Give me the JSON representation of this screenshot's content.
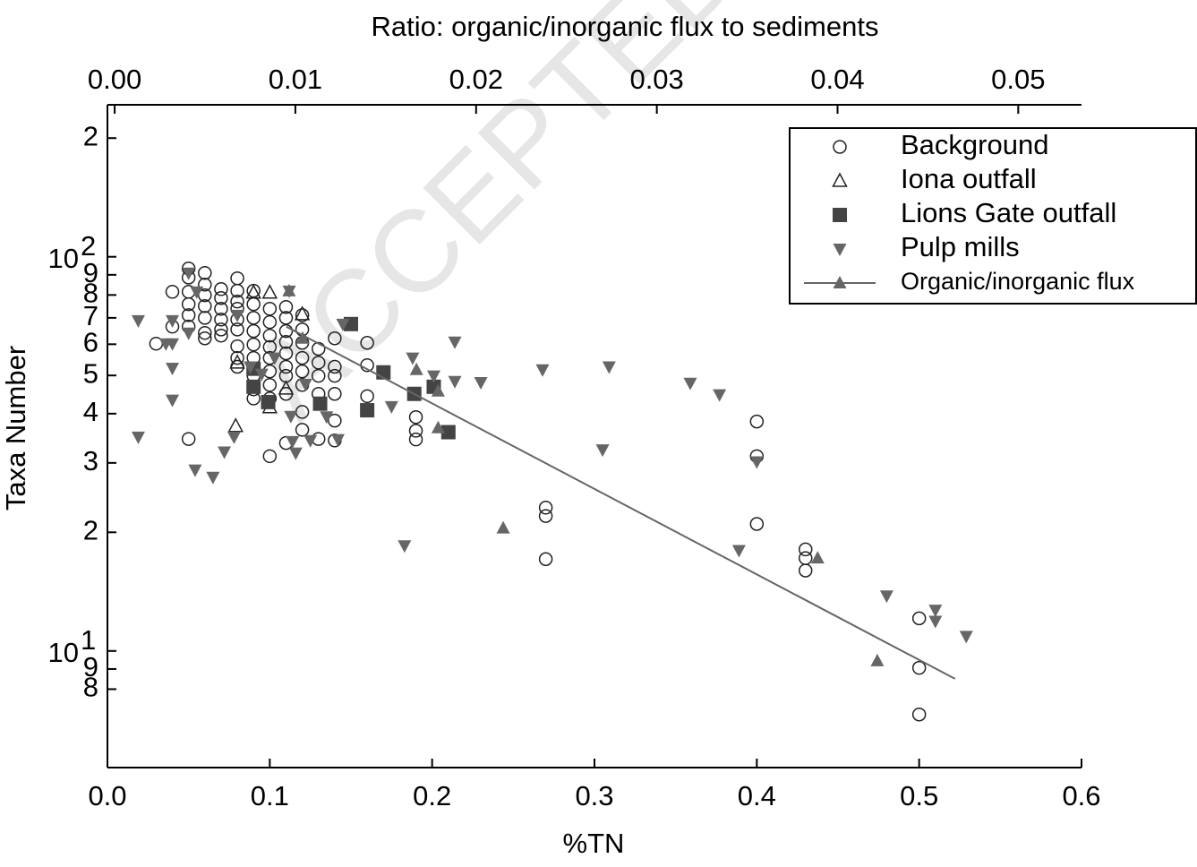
{
  "chart_data": {
    "type": "scatter",
    "watermark": "ACCEPTED",
    "x2label": "Ratio: organic/inorganic flux to sediments",
    "xlabel": "%TN",
    "ylabel": "Taxa Number",
    "xlim": [
      0,
      0.6
    ],
    "xticks": [
      {
        "value": 0,
        "label": "0.0"
      },
      0.1,
      0.2,
      0.3,
      0.4,
      0.5,
      0.6
    ],
    "x2lim": [
      -0.0004,
      0.0535
    ],
    "x2ticks": [
      {
        "value": 0,
        "label": "0.00"
      },
      0.01,
      0.02,
      0.03,
      0.04,
      0.05
    ],
    "ylim": [
      5.06,
      243
    ],
    "log_y": true,
    "yticks": [
      {
        "value": 200,
        "label": "2"
      },
      {
        "value": 100,
        "label": "10",
        "exponent": "2"
      },
      {
        "value": 90,
        "label": "9"
      },
      {
        "value": 80,
        "label": "8"
      },
      {
        "value": 70,
        "label": "7"
      },
      {
        "value": 60,
        "label": "6"
      },
      {
        "value": 50,
        "label": "5"
      },
      {
        "value": 40,
        "label": "4"
      },
      {
        "value": 30,
        "label": "3"
      },
      {
        "value": 20,
        "label": "2"
      },
      {
        "value": 10,
        "label": "10",
        "exponent": "1"
      },
      9,
      8
    ],
    "legend": "upper right",
    "series": [
      {
        "name": "Background",
        "marker": "circle",
        "filled": false,
        "color": "#222222",
        "x": [
          0.03,
          0.04,
          0.04,
          0.05,
          0.05,
          0.05,
          0.05,
          0.05,
          0.05,
          0.05,
          0.06,
          0.06,
          0.06,
          0.06,
          0.06,
          0.06,
          0.06,
          0.07,
          0.07,
          0.07,
          0.07,
          0.07,
          0.07,
          0.08,
          0.08,
          0.08,
          0.08,
          0.08,
          0.08,
          0.08,
          0.08,
          0.08,
          0.09,
          0.09,
          0.09,
          0.09,
          0.09,
          0.09,
          0.09,
          0.09,
          0.09,
          0.1,
          0.1,
          0.1,
          0.1,
          0.1,
          0.1,
          0.1,
          0.1,
          0.1,
          0.11,
          0.11,
          0.11,
          0.11,
          0.11,
          0.11,
          0.11,
          0.11,
          0.11,
          0.12,
          0.12,
          0.12,
          0.12,
          0.12,
          0.12,
          0.12,
          0.12,
          0.13,
          0.13,
          0.13,
          0.13,
          0.13,
          0.14,
          0.14,
          0.14,
          0.14,
          0.14,
          0.14,
          0.16,
          0.16,
          0.16,
          0.19,
          0.19,
          0.19,
          0.27,
          0.27,
          0.27,
          0.4,
          0.4,
          0.4,
          0.43,
          0.43,
          0.43,
          0.5,
          0.5,
          0.5
        ],
        "values": [
          60.2,
          81.5,
          66.5,
          93.4,
          88.6,
          81.5,
          75.8,
          71.1,
          66.5,
          34.5,
          91,
          85,
          79.9,
          75,
          70,
          64.1,
          62.1,
          82.8,
          78.6,
          73.8,
          69.3,
          65.4,
          63.1,
          88.2,
          82,
          77,
          73.8,
          69.3,
          65.4,
          59.3,
          55.4,
          52.6,
          82,
          75.8,
          70,
          64.8,
          59.9,
          55.4,
          49.9,
          46.1,
          43.7,
          73.8,
          68.3,
          63.1,
          59,
          55.4,
          51.2,
          47.3,
          43.7,
          31.2,
          74.6,
          70,
          64.8,
          60.8,
          56.9,
          52.6,
          49.9,
          44.9,
          33.7,
          71.1,
          65.4,
          60.5,
          55.4,
          51.2,
          47.3,
          40.4,
          36.4,
          58.4,
          53.9,
          49.9,
          44.9,
          34.5,
          62.1,
          52.6,
          49.9,
          44.9,
          38.4,
          34.2,
          60.5,
          53.1,
          44.3,
          39.2,
          36.2,
          34.4,
          23.1,
          22,
          17.1,
          38.2,
          31.2,
          21,
          18.1,
          17.2,
          16,
          12.1,
          9.06,
          6.9
        ]
      },
      {
        "name": "Iona outfall",
        "marker": "triangle-up",
        "filled": false,
        "color": "#222222",
        "x": [
          0.079,
          0.08,
          0.09,
          0.1,
          0.11,
          0.12,
          0.1
        ],
        "values": [
          37.2,
          53.9,
          81.1,
          81.1,
          46.3,
          71.5,
          41.5
        ]
      },
      {
        "name": "Lions Gate outfall",
        "marker": "square",
        "filled": true,
        "color": "#444444",
        "x": [
          0.09,
          0.09,
          0.099,
          0.131,
          0.15,
          0.16,
          0.17,
          0.189,
          0.201,
          0.21
        ],
        "values": [
          52,
          46.8,
          42.8,
          42.4,
          67.5,
          40.8,
          50.9,
          44.9,
          46.8,
          35.9
        ]
      },
      {
        "name": "Pulp mills",
        "marker": "triangle-down",
        "filled": true,
        "color": "#666666",
        "x": [
          0.019,
          0.036,
          0.04,
          0.04,
          0.04,
          0.04,
          0.05,
          0.05,
          0.055,
          0.019,
          0.054,
          0.065,
          0.072,
          0.078,
          0.08,
          0.088,
          0.095,
          0.103,
          0.112,
          0.113,
          0.114,
          0.116,
          0.122,
          0.125,
          0.135,
          0.142,
          0.145,
          0.175,
          0.183,
          0.188,
          0.201,
          0.214,
          0.214,
          0.23,
          0.268,
          0.305,
          0.309,
          0.359,
          0.377,
          0.389,
          0.4,
          0.48,
          0.51,
          0.51,
          0.529
        ],
        "values": [
          68.9,
          60.2,
          60.2,
          52.2,
          43.3,
          68.9,
          91,
          64.1,
          81.5,
          34.9,
          28.8,
          27.6,
          32,
          34.9,
          71.1,
          52.6,
          50.4,
          55.4,
          81.9,
          39.4,
          34,
          31.8,
          47.5,
          34.2,
          39.3,
          34.4,
          67.5,
          41.7,
          18.5,
          55.4,
          49.9,
          60.8,
          48.3,
          48,
          51.7,
          32.4,
          52.6,
          47.8,
          44.7,
          18,
          30.2,
          13.8,
          12.7,
          11.9,
          10.9
        ]
      },
      {
        "name": "Organic/inorganic flux",
        "marker": "triangle-up",
        "filled": true,
        "color": "#666666",
        "axis": "x2",
        "x": [
          0.00965,
          0.0104,
          0.0167,
          0.0179,
          0.0179,
          0.0215,
          0.0389,
          0.0422
        ],
        "values": [
          81.9,
          62.1,
          51.7,
          45.6,
          36.8,
          20.5,
          17.2,
          9.44
        ],
        "fit": {
          "x": [
            0.0095,
            0.0465
          ],
          "values": [
            66.5,
            8.5
          ]
        }
      }
    ]
  }
}
